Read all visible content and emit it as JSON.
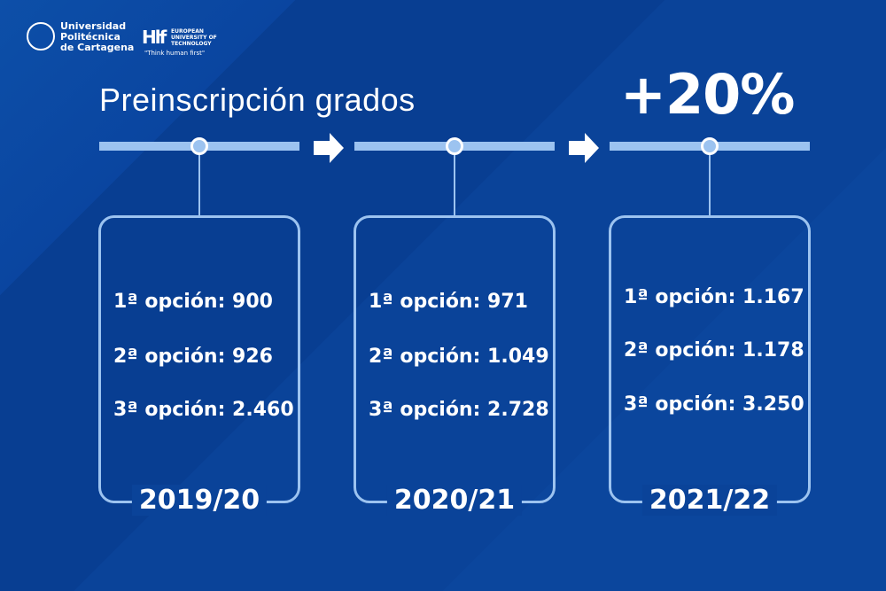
{
  "logos": {
    "upct": [
      "Universidad",
      "Politécnica",
      "de Cartagena"
    ],
    "eut": [
      "EUROPEAN",
      "UNIVERSITY OF",
      "TECHNOLOGY"
    ],
    "eut_slogan": "\"Think human first\""
  },
  "title": "Preinscripción grados",
  "growth": "+20%",
  "colors": {
    "background": "#083e92",
    "accent": "#9cc3f0",
    "text": "#ffffff"
  },
  "periods": [
    {
      "year": "2019/20",
      "lines": [
        "1ª opción: 900",
        "2ª opción: 926",
        "3ª opción: 2.460"
      ]
    },
    {
      "year": "2020/21",
      "lines": [
        "1ª opción: 971",
        "2ª opción: 1.049",
        "3ª opción: 2.728"
      ]
    },
    {
      "year": "2021/22",
      "lines": [
        "1ª opción: 1.167",
        "2ª opción: 1.178",
        "3ª opción: 3.250"
      ]
    }
  ]
}
